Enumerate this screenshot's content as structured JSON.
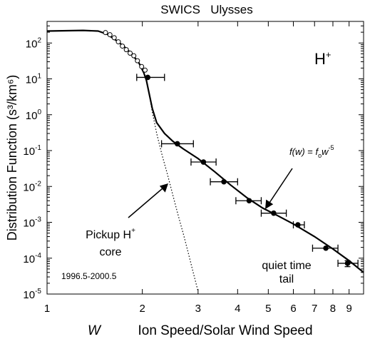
{
  "chart_data": {
    "type": "scatter",
    "title": "SWICS   Ulysses",
    "xlabel_var": "W",
    "xlabel": "Ion Speed/Solar Wind Speed",
    "ylabel": "Distribution Function (s³/km⁶)",
    "x_scale": "log",
    "y_scale": "log",
    "xlim": [
      1,
      10
    ],
    "ylim": [
      1e-05,
      400
    ],
    "x_ticks": [
      1,
      2,
      3,
      4,
      5,
      6,
      7,
      8,
      9
    ],
    "x_tick_labels": [
      "1",
      "2",
      "3",
      "4",
      "5",
      "6",
      "7",
      "8",
      "9"
    ],
    "y_ticks": [
      1e-05,
      0.0001,
      0.001,
      0.01,
      0.1,
      1,
      10,
      100
    ],
    "y_tick_labels": [
      [
        "10",
        "-5"
      ],
      [
        "10",
        "-4"
      ],
      [
        "10",
        "-3"
      ],
      [
        "10",
        "-2"
      ],
      [
        "10",
        "-1"
      ],
      [
        "10",
        "0"
      ],
      [
        "10",
        "1"
      ],
      [
        "10",
        "2"
      ]
    ],
    "series": [
      {
        "style": "filled-circles-with-x-error-bars",
        "points": [
          {
            "x": 2.08,
            "y": 11,
            "xerr": [
              1.92,
              2.35
            ]
          },
          {
            "x": 2.58,
            "y": 0.155,
            "xerr": [
              2.3,
              2.9
            ]
          },
          {
            "x": 3.12,
            "y": 0.048,
            "xerr": [
              2.85,
              3.42
            ]
          },
          {
            "x": 3.62,
            "y": 0.0135,
            "xerr": [
              3.28,
              4.0
            ]
          },
          {
            "x": 4.35,
            "y": 0.004,
            "xerr": [
              3.95,
              4.75
            ]
          },
          {
            "x": 5.2,
            "y": 0.0018,
            "xerr": [
              4.75,
              5.7
            ]
          },
          {
            "x": 6.2,
            "y": 0.00085,
            "xerr": [
              6.0,
              6.5
            ]
          },
          {
            "x": 7.6,
            "y": 0.00019,
            "xerr": [
              6.9,
              8.3
            ]
          },
          {
            "x": 8.9,
            "y": 7.2e-05,
            "xerr": [
              8.3,
              9.6
            ],
            "yerr": [
              5.8e-05,
              8.5e-05
            ]
          }
        ]
      },
      {
        "style": "open-circles",
        "points": [
          {
            "x": 1.53,
            "y": 195
          },
          {
            "x": 1.58,
            "y": 170
          },
          {
            "x": 1.63,
            "y": 140
          },
          {
            "x": 1.68,
            "y": 108
          },
          {
            "x": 1.73,
            "y": 82
          },
          {
            "x": 1.78,
            "y": 65
          },
          {
            "x": 1.83,
            "y": 52
          },
          {
            "x": 1.88,
            "y": 44
          },
          {
            "x": 1.93,
            "y": 32
          },
          {
            "x": 1.99,
            "y": 22
          },
          {
            "x": 2.04,
            "y": 17.5
          }
        ]
      },
      {
        "style": "solid-fit-line",
        "points": [
          {
            "x": 1.0,
            "y": 215
          },
          {
            "x": 1.3,
            "y": 225
          },
          {
            "x": 1.45,
            "y": 215
          },
          {
            "x": 1.55,
            "y": 175
          },
          {
            "x": 1.65,
            "y": 120
          },
          {
            "x": 1.75,
            "y": 80
          },
          {
            "x": 1.85,
            "y": 50
          },
          {
            "x": 1.95,
            "y": 28
          },
          {
            "x": 2.02,
            "y": 15
          },
          {
            "x": 2.06,
            "y": 9
          },
          {
            "x": 2.1,
            "y": 4
          },
          {
            "x": 2.15,
            "y": 1.5
          },
          {
            "x": 2.22,
            "y": 0.6
          },
          {
            "x": 2.35,
            "y": 0.3
          },
          {
            "x": 2.5,
            "y": 0.18
          },
          {
            "x": 2.7,
            "y": 0.11
          },
          {
            "x": 3.0,
            "y": 0.06
          },
          {
            "x": 3.4,
            "y": 0.025
          },
          {
            "x": 3.8,
            "y": 0.011
          },
          {
            "x": 4.3,
            "y": 0.0047
          },
          {
            "x": 4.8,
            "y": 0.0025
          },
          {
            "x": 5.3,
            "y": 0.0016
          },
          {
            "x": 6.0,
            "y": 0.0009
          },
          {
            "x": 7.0,
            "y": 0.0004
          },
          {
            "x": 8.0,
            "y": 0.00018
          },
          {
            "x": 9.0,
            "y": 8.5e-05
          },
          {
            "x": 10.0,
            "y": 4e-05
          }
        ]
      },
      {
        "style": "dotted-core-line",
        "points": [
          {
            "x": 1.55,
            "y": 175
          },
          {
            "x": 1.7,
            "y": 100
          },
          {
            "x": 1.85,
            "y": 50
          },
          {
            "x": 1.95,
            "y": 28
          },
          {
            "x": 2.02,
            "y": 15
          },
          {
            "x": 2.06,
            "y": 9
          },
          {
            "x": 2.1,
            "y": 4
          },
          {
            "x": 2.15,
            "y": 1.2
          },
          {
            "x": 2.22,
            "y": 0.3
          },
          {
            "x": 2.3,
            "y": 0.085
          },
          {
            "x": 2.4,
            "y": 0.022
          },
          {
            "x": 2.5,
            "y": 0.0055
          },
          {
            "x": 2.6,
            "y": 0.0015
          },
          {
            "x": 2.7,
            "y": 0.00045
          },
          {
            "x": 2.8,
            "y": 0.00013
          },
          {
            "x": 2.9,
            "y": 3.8e-05
          },
          {
            "x": 3.0,
            "y": 1.2e-05
          }
        ]
      }
    ],
    "annotations": {
      "ion": {
        "base": "H",
        "sup": "+"
      },
      "formula": {
        "f1": "f",
        "w1": "(w)",
        "eq": " = ",
        "f2": "f",
        "sub": "o",
        "w2": "w",
        "exp": "-5"
      },
      "pickup": {
        "line1": "Pickup H",
        "sup": "+",
        "line2": "core"
      },
      "tail": {
        "line1": "quiet time",
        "line2": "tail"
      },
      "date_range": "1996.5-2000.5"
    },
    "colors": {
      "axes": "#000000",
      "marks": "#000000",
      "background": "#ffffff"
    }
  }
}
